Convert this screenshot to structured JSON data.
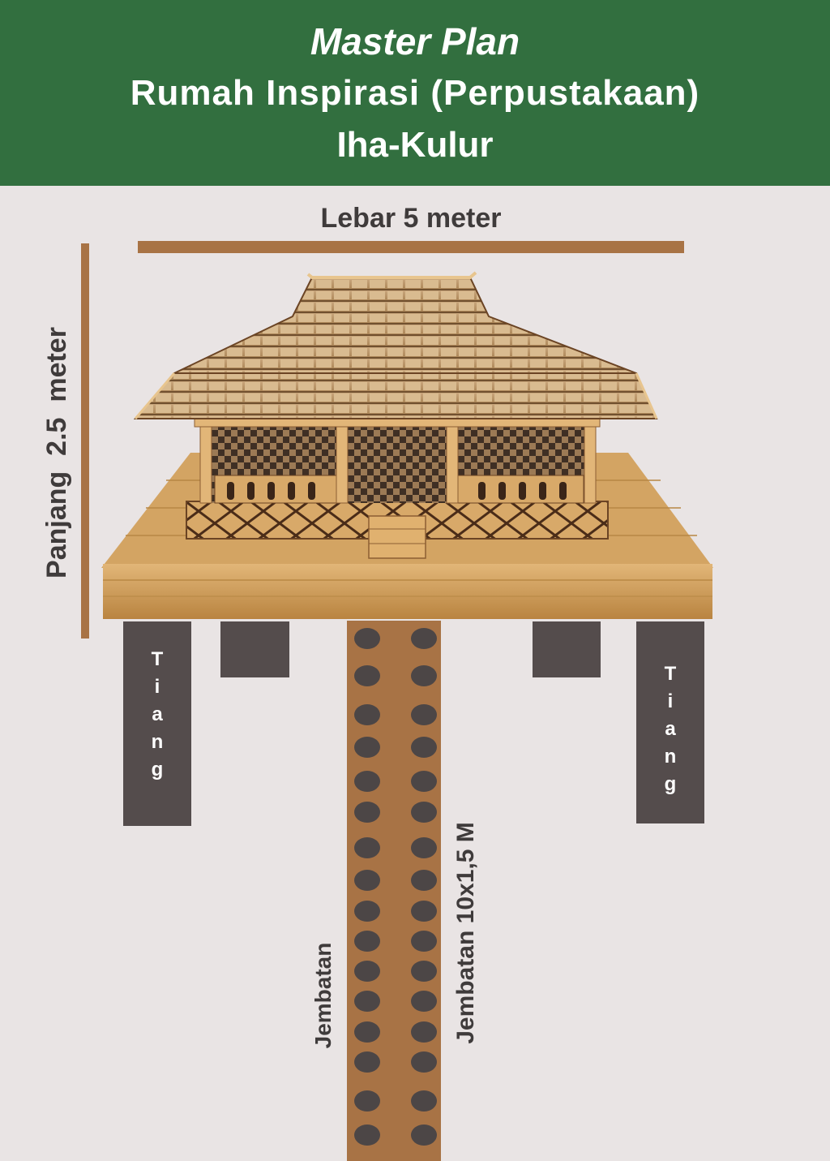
{
  "header": {
    "title": "Master Plan",
    "subtitle": "Rumah Inspirasi (Perpustakaan)",
    "location": "Iha-Kulur"
  },
  "dimensions": {
    "width_label": "Lebar 5 meter",
    "length_label": "Panjang  2.5  meter"
  },
  "pillars": {
    "left_label": "T\ni\na\nn\ng",
    "right_label": "T\ni\na\nn\ng"
  },
  "bridge": {
    "left_label": "Jembatan",
    "right_label": "Jembatan 10x1,5 M"
  },
  "colors": {
    "header_bg": "#326f3f",
    "bar": "#a87345",
    "pillar": "#544c4c",
    "background": "#e9e4e4"
  }
}
